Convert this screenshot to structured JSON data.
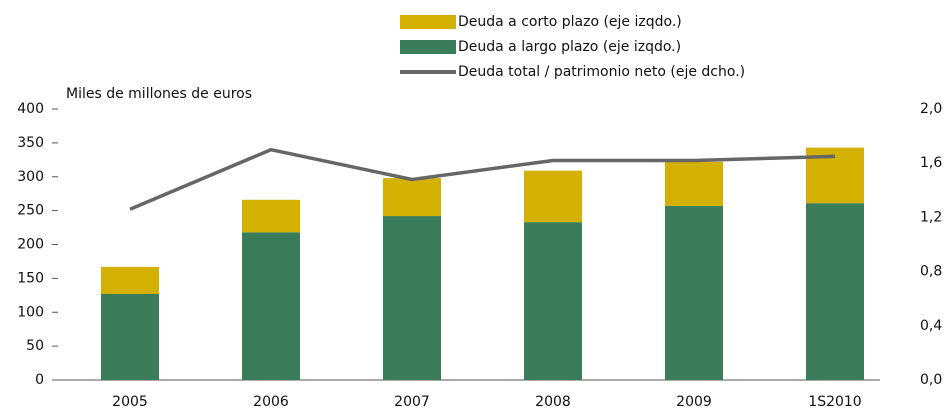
{
  "chart_data": {
    "type": "bar",
    "y_axis_label": "Miles de millones de euros",
    "categories": [
      "2005",
      "2006",
      "2007",
      "2008",
      "2009",
      "1S2010"
    ],
    "series": [
      {
        "name": "Deuda a corto plazo (eje izqdo.)",
        "color": "#d4b000",
        "values": [
          40,
          48,
          56,
          76,
          65,
          82
        ]
      },
      {
        "name": "Deuda a largo plazo (eje izqdo.)",
        "color": "#3b7d5a",
        "values": [
          127,
          218,
          242,
          233,
          257,
          261
        ]
      },
      {
        "name": "Deuda total / patrimonio neto (eje dcho.)",
        "color": "#666666",
        "type": "line",
        "axis": "y2",
        "values": [
          1.26,
          1.7,
          1.48,
          1.62,
          1.62,
          1.65
        ]
      }
    ],
    "ylim": [
      0,
      400
    ],
    "yticks": [
      0,
      50,
      100,
      150,
      200,
      250,
      300,
      350,
      400
    ],
    "y2lim": [
      0,
      2
    ],
    "y2ticks": [
      {
        "value": 0,
        "label": "0,0"
      },
      {
        "value": 0.4,
        "label": "0,4"
      },
      {
        "value": 0.8,
        "label": "0,8"
      },
      {
        "value": 1.2,
        "label": "1,2"
      },
      {
        "value": 1.6,
        "label": "1,6"
      },
      {
        "value": 2,
        "label": "2,0"
      }
    ],
    "grid": false
  }
}
